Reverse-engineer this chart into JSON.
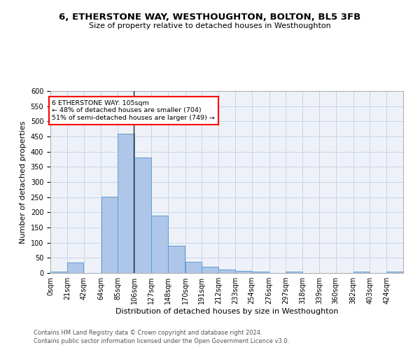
{
  "title": "6, ETHERSTONE WAY, WESTHOUGHTON, BOLTON, BL5 3FB",
  "subtitle": "Size of property relative to detached houses in Westhoughton",
  "xlabel": "Distribution of detached houses by size in Westhoughton",
  "ylabel": "Number of detached properties",
  "footnote1": "Contains HM Land Registry data © Crown copyright and database right 2024.",
  "footnote2": "Contains public sector information licensed under the Open Government Licence v3.0.",
  "bar_color": "#aec6e8",
  "bar_edge_color": "#5a9fd4",
  "grid_color": "#c8d4e8",
  "background_color": "#eef2f8",
  "annotation_text": "6 ETHERSTONE WAY: 105sqm\n← 48% of detached houses are smaller (704)\n51% of semi-detached houses are larger (749) →",
  "annotation_box_color": "white",
  "annotation_border_color": "red",
  "property_line_x": 105,
  "categories": [
    "0sqm",
    "21sqm",
    "42sqm",
    "64sqm",
    "85sqm",
    "106sqm",
    "127sqm",
    "148sqm",
    "170sqm",
    "191sqm",
    "212sqm",
    "233sqm",
    "254sqm",
    "276sqm",
    "297sqm",
    "318sqm",
    "339sqm",
    "360sqm",
    "382sqm",
    "403sqm",
    "424sqm"
  ],
  "bin_edges": [
    0,
    21,
    42,
    64,
    85,
    106,
    127,
    148,
    170,
    191,
    212,
    233,
    254,
    276,
    297,
    318,
    339,
    360,
    382,
    403,
    424,
    445
  ],
  "values": [
    5,
    35,
    0,
    252,
    460,
    380,
    190,
    91,
    38,
    20,
    12,
    7,
    5,
    0,
    5,
    0,
    0,
    0,
    5,
    0,
    5
  ],
  "ylim": [
    0,
    600
  ],
  "yticks": [
    0,
    50,
    100,
    150,
    200,
    250,
    300,
    350,
    400,
    450,
    500,
    550,
    600
  ],
  "title_fontsize": 9.5,
  "subtitle_fontsize": 8,
  "axis_label_fontsize": 8,
  "tick_fontsize": 7,
  "footnote_fontsize": 6
}
